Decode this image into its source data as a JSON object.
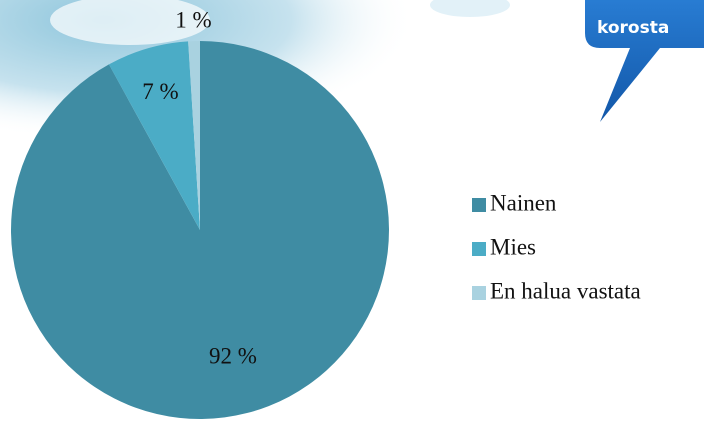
{
  "chart_data": {
    "type": "pie",
    "categories": [
      "Nainen",
      "Mies",
      "En halua vastata"
    ],
    "values": [
      92,
      7,
      1
    ],
    "value_labels": [
      "92 %",
      "7 %",
      "1 %"
    ],
    "colors": [
      "#3f8ca3",
      "#4bacc6",
      "#a9d2e0"
    ],
    "annotation": "korosta"
  }
}
